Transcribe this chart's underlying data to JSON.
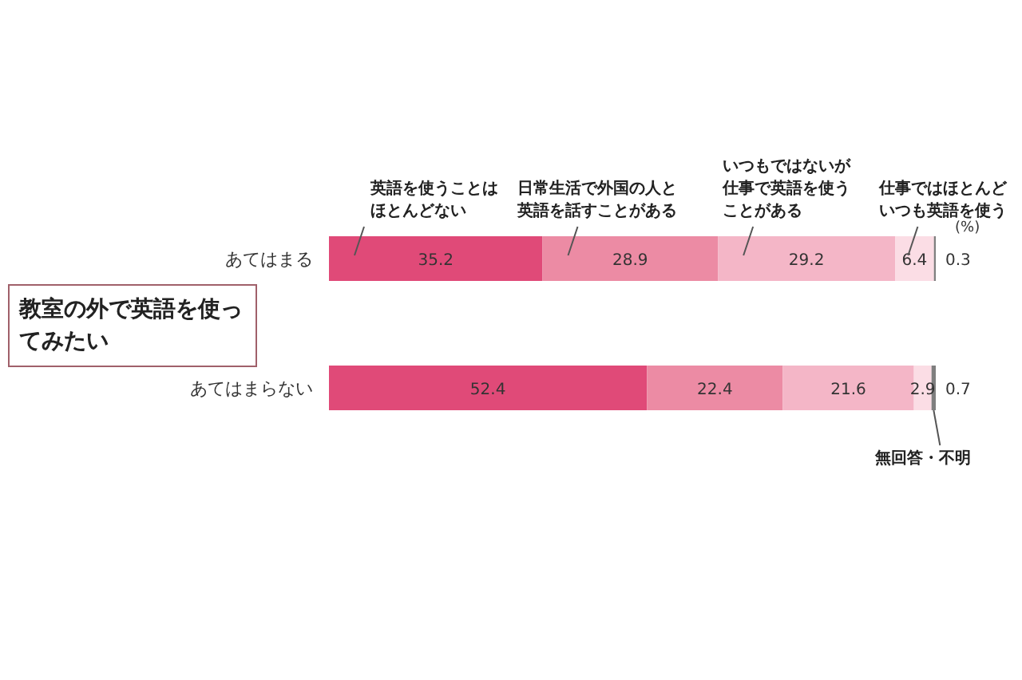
{
  "chart_data": {
    "type": "bar",
    "orientation": "horizontal",
    "stacked": true,
    "title": "教室の外で英語を使ってみたい",
    "annotations": [
      "(%)"
    ],
    "categories": [
      "あてはまる",
      "あてはまらない"
    ],
    "data_labels": true,
    "legend": "top",
    "series": [
      {
        "name": "英語を使うことはほとんどない",
        "color": "#e04a78",
        "values": [
          35.2,
          52.4
        ]
      },
      {
        "name": "日常生活で外国の人と英語を話すことがある",
        "color": "#ec8ba4",
        "values": [
          28.9,
          22.4
        ]
      },
      {
        "name": "いつもではないが仕事で英語を使うことがある",
        "color": "#f4b6c7",
        "values": [
          29.2,
          21.6
        ]
      },
      {
        "name": "仕事ではほとんどいつも英語を使う",
        "color": "#fbdde5",
        "values": [
          6.4,
          2.9
        ]
      },
      {
        "name": "無回答・不明",
        "color": "#7f7f7f",
        "values": [
          0.3,
          0.7
        ]
      }
    ]
  }
}
